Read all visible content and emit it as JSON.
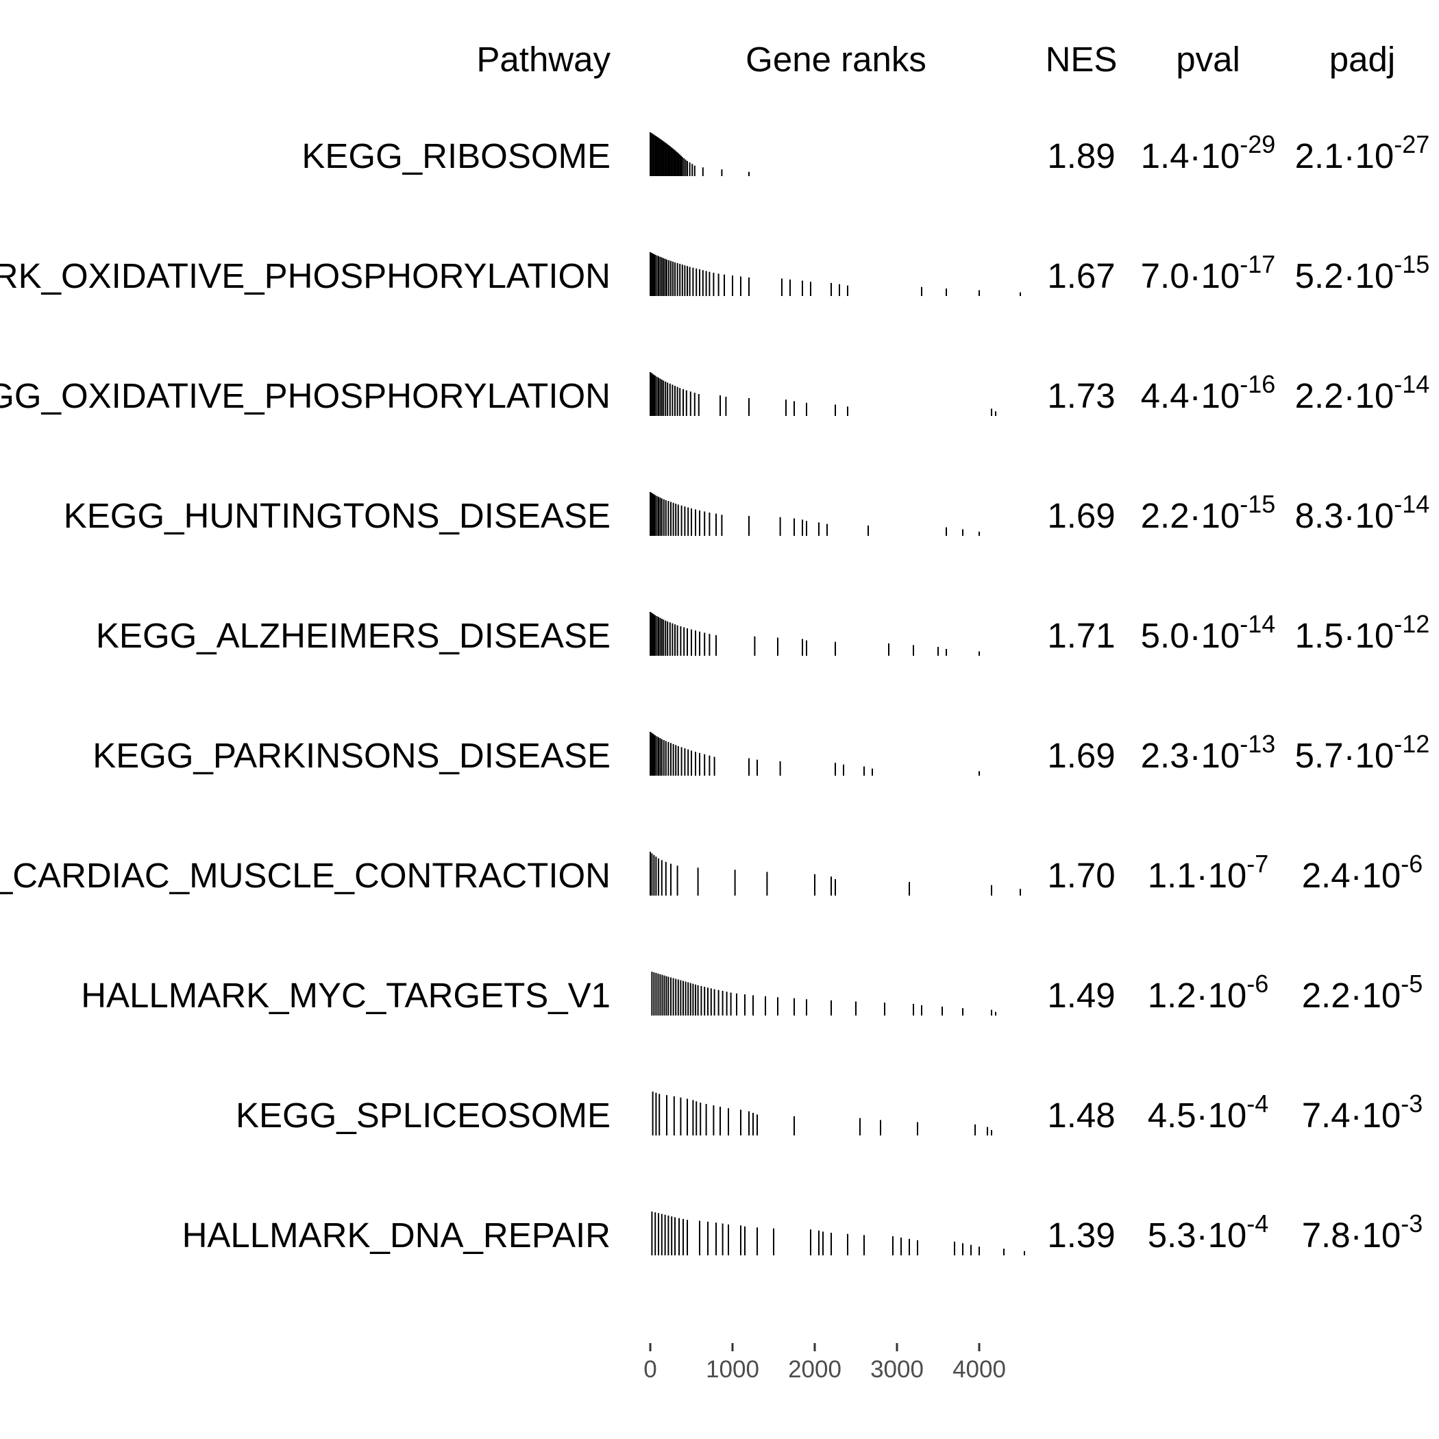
{
  "chart_data": {
    "type": "table",
    "columns": {
      "pathway": "Pathway",
      "gene_ranks": "Gene ranks",
      "nes": "NES",
      "pval": "pval",
      "padj": "padj"
    },
    "x_axis": {
      "range": [
        0,
        4500
      ],
      "ticks": [
        0,
        1000,
        2000,
        3000,
        4000
      ],
      "tick_labels": [
        "0",
        "1000",
        "2000",
        "3000",
        "4000"
      ]
    },
    "rows": [
      {
        "pathway": "KEGG_RIBOSOME",
        "nes": "1.89",
        "pval": {
          "mantissa": "1.4·10",
          "exponent": "-29"
        },
        "padj": {
          "mantissa": "2.1·10",
          "exponent": "-27"
        },
        "ranks": [
          0,
          15,
          30,
          45,
          60,
          75,
          90,
          105,
          120,
          135,
          150,
          165,
          180,
          195,
          210,
          225,
          240,
          255,
          270,
          285,
          300,
          315,
          330,
          345,
          360,
          375,
          390,
          410,
          430,
          450,
          480,
          510,
          540,
          640,
          870,
          1200
        ]
      },
      {
        "pathway": "HALLMARK_OXIDATIVE_PHOSPHORYLATION",
        "nes": "1.67",
        "pval": {
          "mantissa": "7.0·10",
          "exponent": "-17"
        },
        "padj": {
          "mantissa": "5.2·10",
          "exponent": "-15"
        },
        "ranks": [
          0,
          15,
          30,
          45,
          60,
          80,
          100,
          120,
          140,
          160,
          180,
          200,
          225,
          250,
          275,
          300,
          330,
          360,
          390,
          420,
          450,
          480,
          520,
          560,
          600,
          640,
          680,
          720,
          770,
          830,
          900,
          1000,
          1100,
          1200,
          1600,
          1700,
          1850,
          1950,
          2200,
          2300,
          2400,
          3300,
          3600,
          4000,
          4500
        ]
      },
      {
        "pathway": "KEGG_OXIDATIVE_PHOSPHORYLATION",
        "nes": "1.73",
        "pval": {
          "mantissa": "4.4·10",
          "exponent": "-16"
        },
        "padj": {
          "mantissa": "2.2·10",
          "exponent": "-14"
        },
        "ranks": [
          0,
          15,
          30,
          45,
          60,
          80,
          100,
          120,
          140,
          160,
          185,
          210,
          240,
          270,
          300,
          330,
          360,
          400,
          440,
          490,
          540,
          590,
          850,
          920,
          1200,
          1650,
          1750,
          1900,
          2250,
          2400,
          4150,
          4200
        ]
      },
      {
        "pathway": "KEGG_HUNTINGTONS_DISEASE",
        "nes": "1.69",
        "pval": {
          "mantissa": "2.2·10",
          "exponent": "-15"
        },
        "padj": {
          "mantissa": "8.3·10",
          "exponent": "-14"
        },
        "ranks": [
          0,
          15,
          30,
          45,
          60,
          80,
          100,
          120,
          140,
          165,
          190,
          220,
          250,
          280,
          310,
          340,
          380,
          420,
          460,
          500,
          550,
          600,
          660,
          720,
          800,
          870,
          1200,
          1580,
          1750,
          1850,
          1900,
          2050,
          2150,
          2650,
          3600,
          3800,
          4000
        ]
      },
      {
        "pathway": "KEGG_ALZHEIMERS_DISEASE",
        "nes": "1.71",
        "pval": {
          "mantissa": "5.0·10",
          "exponent": "-14"
        },
        "padj": {
          "mantissa": "1.5·10",
          "exponent": "-12"
        },
        "ranks": [
          0,
          15,
          30,
          45,
          60,
          80,
          100,
          120,
          140,
          160,
          185,
          210,
          240,
          270,
          300,
          330,
          370,
          410,
          450,
          500,
          550,
          600,
          660,
          720,
          800,
          1270,
          1550,
          1850,
          1900,
          2250,
          2900,
          3200,
          3500,
          3600,
          4000
        ]
      },
      {
        "pathway": "KEGG_PARKINSONS_DISEASE",
        "nes": "1.69",
        "pval": {
          "mantissa": "2.3·10",
          "exponent": "-13"
        },
        "padj": {
          "mantissa": "5.7·10",
          "exponent": "-12"
        },
        "ranks": [
          0,
          15,
          30,
          45,
          60,
          80,
          100,
          120,
          140,
          165,
          190,
          220,
          250,
          280,
          310,
          340,
          380,
          420,
          460,
          500,
          550,
          600,
          660,
          720,
          780,
          1200,
          1300,
          1580,
          2250,
          2350,
          2600,
          2700,
          4000
        ]
      },
      {
        "pathway": "KEGG_CARDIAC_MUSCLE_CONTRACTION",
        "nes": "1.70",
        "pval": {
          "mantissa": "1.1·10",
          "exponent": "-7"
        },
        "padj": {
          "mantissa": "2.4·10",
          "exponent": "-6"
        },
        "ranks": [
          0,
          20,
          45,
          70,
          100,
          140,
          190,
          250,
          330,
          580,
          1030,
          1420,
          2000,
          2200,
          2250,
          3150,
          4150,
          4500
        ]
      },
      {
        "pathway": "HALLMARK_MYC_TARGETS_V1",
        "nes": "1.49",
        "pval": {
          "mantissa": "1.2·10",
          "exponent": "-6"
        },
        "padj": {
          "mantissa": "2.2·10",
          "exponent": "-5"
        },
        "ranks": [
          20,
          45,
          70,
          95,
          120,
          145,
          170,
          195,
          220,
          250,
          280,
          310,
          340,
          370,
          400,
          430,
          460,
          490,
          520,
          550,
          580,
          620,
          660,
          700,
          740,
          780,
          830,
          880,
          930,
          980,
          1050,
          1150,
          1250,
          1400,
          1550,
          1750,
          1900,
          2200,
          2500,
          2850,
          3200,
          3300,
          3550,
          3800,
          4150,
          4200
        ]
      },
      {
        "pathway": "KEGG_SPLICEOSOME",
        "nes": "1.48",
        "pval": {
          "mantissa": "4.5·10",
          "exponent": "-4"
        },
        "padj": {
          "mantissa": "7.4·10",
          "exponent": "-3"
        },
        "ranks": [
          30,
          70,
          110,
          200,
          290,
          370,
          450,
          520,
          560,
          610,
          680,
          770,
          850,
          950,
          1100,
          1200,
          1250,
          1300,
          1750,
          2550,
          2800,
          3250,
          3950,
          4100,
          4150
        ]
      },
      {
        "pathway": "HALLMARK_DNA_REPAIR",
        "nes": "1.39",
        "pval": {
          "mantissa": "5.3·10",
          "exponent": "-4"
        },
        "padj": {
          "mantissa": "7.8·10",
          "exponent": "-3"
        },
        "ranks": [
          20,
          60,
          100,
          140,
          180,
          220,
          260,
          300,
          350,
          400,
          450,
          600,
          700,
          800,
          880,
          950,
          1100,
          1150,
          1300,
          1500,
          1950,
          2050,
          2100,
          2200,
          2400,
          2600,
          2950,
          3050,
          3150,
          3250,
          3700,
          3800,
          3900,
          4000,
          4300,
          4550
        ]
      }
    ]
  }
}
